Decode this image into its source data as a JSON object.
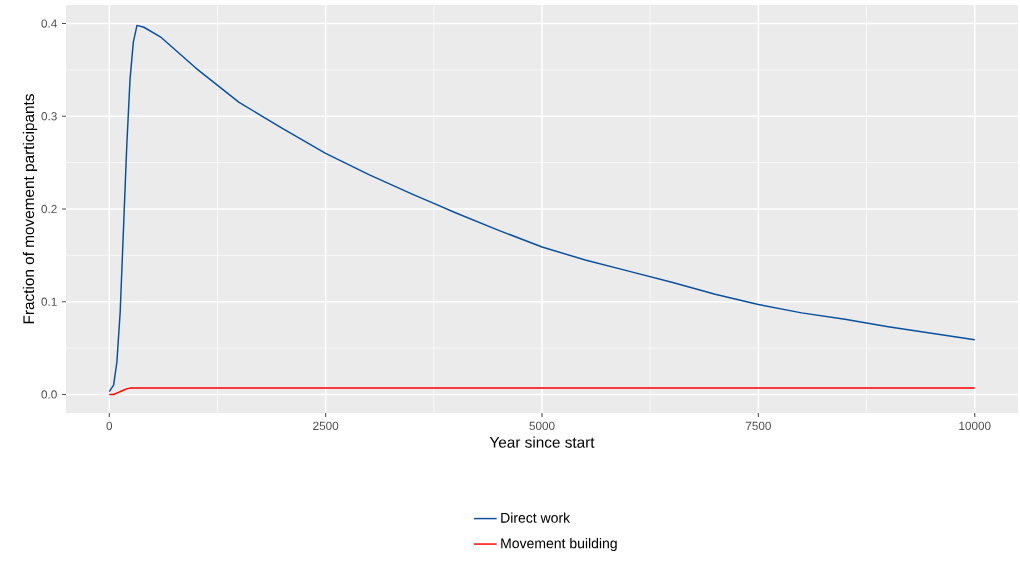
{
  "chart_data": {
    "type": "line",
    "xlabel": "Year since start",
    "ylabel": "Fraction of movement participants",
    "xlim": [
      -500,
      10500
    ],
    "ylim": [
      -0.02,
      0.42
    ],
    "xticks": [
      0,
      2500,
      5000,
      7500,
      10000
    ],
    "yticks": [
      {
        "value": 0,
        "label": "0.0"
      },
      0.1,
      0.2,
      0.3,
      0.4
    ],
    "grid": true,
    "legend": "bottom",
    "line_style": "solid",
    "series": [
      {
        "name": "Direct work",
        "color": "#0a4f9c",
        "x": [
          0,
          50,
          88,
          126,
          164,
          202,
          240,
          278,
          320,
          400,
          600,
          1000,
          1500,
          2000,
          2500,
          3000,
          3500,
          3750,
          4000,
          4500,
          5000,
          5500,
          6000,
          6250,
          6500,
          7000,
          7500,
          8000,
          8500,
          8750,
          9000,
          9500,
          10000
        ],
        "values": [
          0.003,
          0.01,
          0.035,
          0.089,
          0.178,
          0.268,
          0.34,
          0.38,
          0.398,
          0.396,
          0.385,
          0.352,
          0.315,
          0.287,
          0.26,
          0.237,
          0.216,
          0.206,
          0.196,
          0.177,
          0.159,
          0.145,
          0.133,
          0.127,
          0.121,
          0.108,
          0.097,
          0.088,
          0.081,
          0.077,
          0.073,
          0.066,
          0.059
        ]
      },
      {
        "name": "Movement building",
        "color": "#ff0000",
        "x": [
          0,
          50,
          100,
          150,
          200,
          250,
          300,
          10000
        ],
        "values": [
          0,
          0,
          0.002,
          0.004,
          0.006,
          0.007,
          0.007,
          0.007
        ]
      }
    ]
  }
}
